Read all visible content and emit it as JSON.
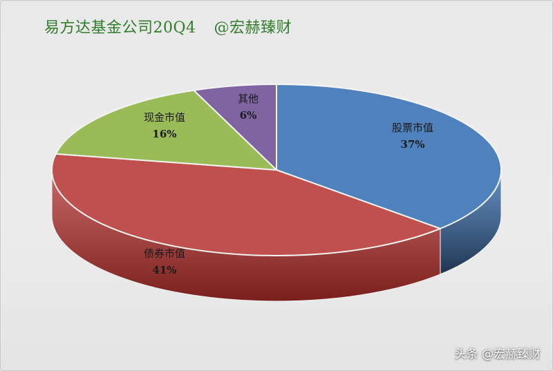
{
  "title": {
    "main": "易方达基金公司20Q4",
    "handle": "@宏赫臻财"
  },
  "watermark": "头条 @宏赫臻财",
  "chart_data": {
    "type": "pie",
    "title": "易方达基金公司20Q4",
    "slices": [
      {
        "label": "股票市值",
        "value": 37,
        "value_label": "37%",
        "color": "#4f81bd",
        "side_color": "#1f3550"
      },
      {
        "label": "债券市值",
        "value": 41,
        "value_label": "41%",
        "color": "#c0504d",
        "side_color": "#7a1f1d"
      },
      {
        "label": "现金市值",
        "value": 16,
        "value_label": "16%",
        "color": "#9bbb59",
        "side_color": "#5f7a2a"
      },
      {
        "label": "其他",
        "value": 6,
        "value_label": "6%",
        "color": "#8064a2",
        "side_color": "#4a3566"
      }
    ],
    "start_angle_deg": -90,
    "direction": "clockwise",
    "style": "3d-tilted"
  }
}
